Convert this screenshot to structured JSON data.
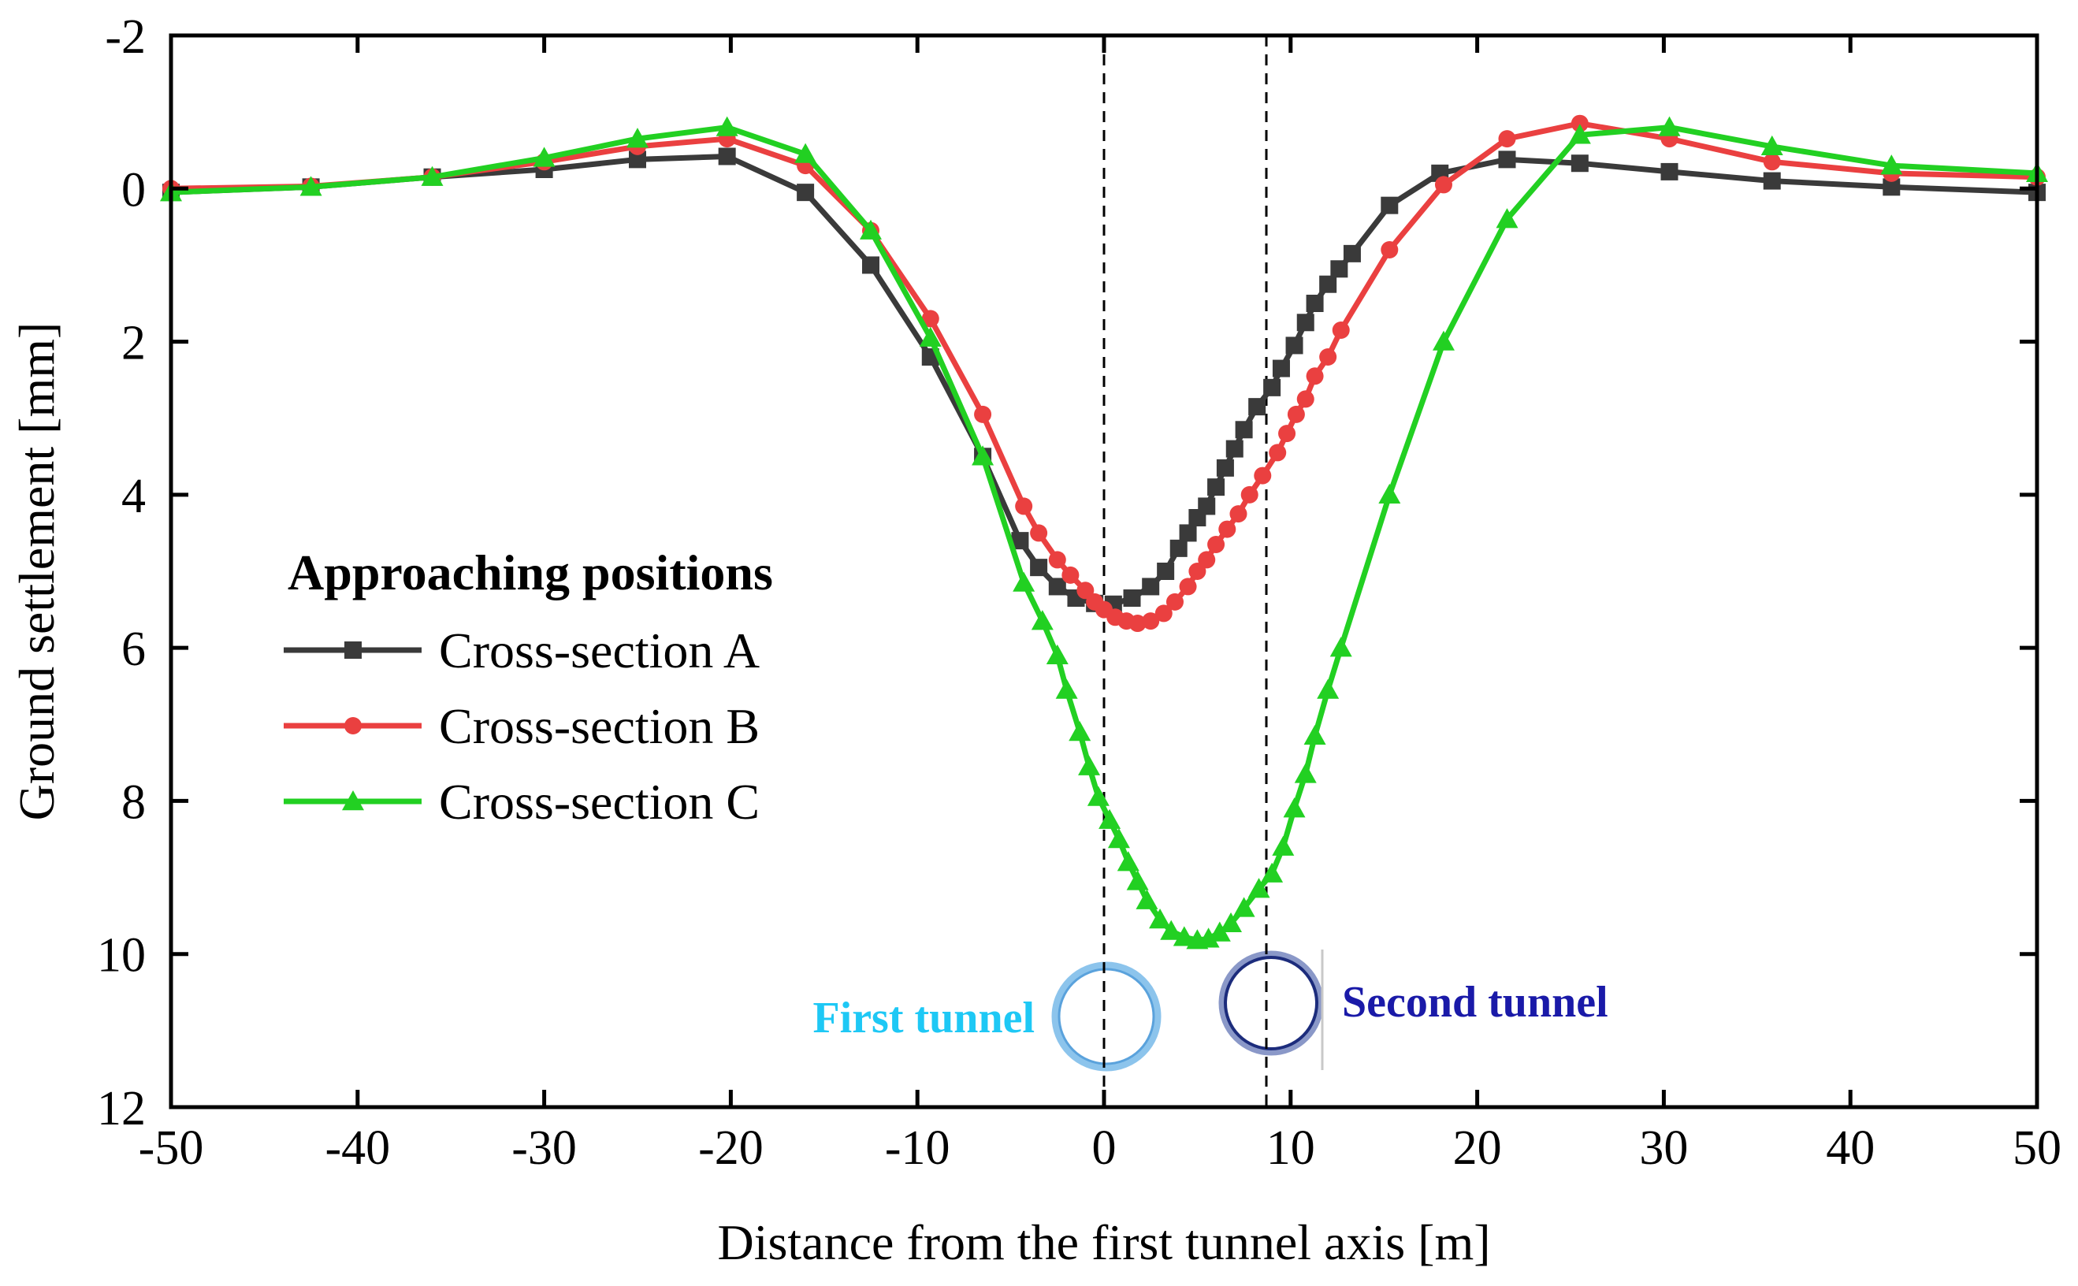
{
  "chart_data": {
    "type": "line",
    "title": "",
    "xlabel": "Distance from the first tunnel axis [m]",
    "ylabel": "Ground settlement [mm]",
    "xlim": [
      -50,
      50
    ],
    "ylim": [
      -2,
      12
    ],
    "y_inverted": true,
    "grid": false,
    "x_ticks": [
      -50,
      -40,
      -30,
      -20,
      -10,
      0,
      10,
      20,
      30,
      40,
      50
    ],
    "y_ticks": [
      -2,
      0,
      2,
      4,
      6,
      8,
      10,
      12
    ],
    "legend": {
      "title": "Approaching positions",
      "placement": "center-left"
    },
    "annotations": {
      "first_tunnel": {
        "label": "First tunnel",
        "x": 0,
        "color": "#1ec8f5"
      },
      "second_tunnel": {
        "label": "Second tunnel",
        "x": 8.7,
        "color": "#1a1aa8"
      }
    },
    "vertical_reference_lines": [
      0,
      8.7
    ],
    "series": [
      {
        "name": "Cross-section A",
        "color": "#3a3a3a",
        "marker": "square",
        "points": [
          [
            -50,
            0.05
          ],
          [
            -42.5,
            -0.02
          ],
          [
            -36,
            -0.15
          ],
          [
            -30,
            -0.25
          ],
          [
            -25,
            -0.38
          ],
          [
            -20.2,
            -0.42
          ],
          [
            -16,
            0.05
          ],
          [
            -12.5,
            1.0
          ],
          [
            -9.3,
            2.2
          ],
          [
            -6.5,
            3.5
          ],
          [
            -4.5,
            4.6
          ],
          [
            -3.5,
            4.95
          ],
          [
            -2.5,
            5.2
          ],
          [
            -1.5,
            5.35
          ],
          [
            -0.5,
            5.42
          ],
          [
            0.5,
            5.43
          ],
          [
            1.5,
            5.35
          ],
          [
            2.5,
            5.2
          ],
          [
            3.3,
            5.0
          ],
          [
            4.0,
            4.7
          ],
          [
            4.5,
            4.5
          ],
          [
            5.0,
            4.3
          ],
          [
            5.5,
            4.15
          ],
          [
            6.0,
            3.9
          ],
          [
            6.5,
            3.65
          ],
          [
            7.0,
            3.4
          ],
          [
            7.5,
            3.15
          ],
          [
            8.2,
            2.85
          ],
          [
            9.0,
            2.6
          ],
          [
            9.5,
            2.35
          ],
          [
            10.2,
            2.05
          ],
          [
            10.8,
            1.75
          ],
          [
            11.3,
            1.5
          ],
          [
            12.0,
            1.25
          ],
          [
            12.6,
            1.05
          ],
          [
            13.3,
            0.85
          ],
          [
            15.3,
            0.22
          ],
          [
            18.0,
            -0.2
          ],
          [
            21.6,
            -0.38
          ],
          [
            25.5,
            -0.33
          ],
          [
            30.3,
            -0.22
          ],
          [
            35.8,
            -0.1
          ],
          [
            42.2,
            -0.02
          ],
          [
            50,
            0.05
          ]
        ]
      },
      {
        "name": "Cross-section B",
        "color": "#ea4040",
        "marker": "circle",
        "points": [
          [
            -50,
            0.0
          ],
          [
            -42.5,
            -0.03
          ],
          [
            -36,
            -0.15
          ],
          [
            -30,
            -0.35
          ],
          [
            -25,
            -0.55
          ],
          [
            -20.2,
            -0.65
          ],
          [
            -16,
            -0.3
          ],
          [
            -12.5,
            0.55
          ],
          [
            -9.3,
            1.7
          ],
          [
            -6.5,
            2.95
          ],
          [
            -4.3,
            4.15
          ],
          [
            -3.5,
            4.5
          ],
          [
            -2.5,
            4.85
          ],
          [
            -1.8,
            5.05
          ],
          [
            -1.0,
            5.25
          ],
          [
            -0.5,
            5.4
          ],
          [
            0.0,
            5.5
          ],
          [
            0.6,
            5.6
          ],
          [
            1.2,
            5.65
          ],
          [
            1.8,
            5.68
          ],
          [
            2.5,
            5.65
          ],
          [
            3.2,
            5.55
          ],
          [
            3.8,
            5.4
          ],
          [
            4.5,
            5.2
          ],
          [
            5.0,
            5.0
          ],
          [
            5.5,
            4.85
          ],
          [
            6.0,
            4.65
          ],
          [
            6.6,
            4.45
          ],
          [
            7.2,
            4.25
          ],
          [
            7.8,
            4.0
          ],
          [
            8.5,
            3.75
          ],
          [
            9.3,
            3.45
          ],
          [
            9.8,
            3.2
          ],
          [
            10.3,
            2.95
          ],
          [
            10.8,
            2.75
          ],
          [
            11.3,
            2.45
          ],
          [
            12.0,
            2.2
          ],
          [
            12.7,
            1.85
          ],
          [
            15.3,
            0.8
          ],
          [
            18.2,
            -0.05
          ],
          [
            21.6,
            -0.65
          ],
          [
            25.5,
            -0.85
          ],
          [
            30.3,
            -0.65
          ],
          [
            35.8,
            -0.35
          ],
          [
            42.2,
            -0.2
          ],
          [
            50,
            -0.15
          ]
        ]
      },
      {
        "name": "Cross-section C",
        "color": "#22d022",
        "marker": "triangle",
        "points": [
          [
            -50,
            0.05
          ],
          [
            -42.5,
            -0.02
          ],
          [
            -36,
            -0.15
          ],
          [
            -30,
            -0.4
          ],
          [
            -25,
            -0.65
          ],
          [
            -20.2,
            -0.8
          ],
          [
            -16,
            -0.45
          ],
          [
            -12.5,
            0.55
          ],
          [
            -9.3,
            1.95
          ],
          [
            -6.5,
            3.5
          ],
          [
            -4.3,
            5.15
          ],
          [
            -3.3,
            5.65
          ],
          [
            -2.5,
            6.1
          ],
          [
            -2.0,
            6.55
          ],
          [
            -1.3,
            7.1
          ],
          [
            -0.8,
            7.55
          ],
          [
            -0.3,
            7.95
          ],
          [
            0.3,
            8.25
          ],
          [
            0.8,
            8.5
          ],
          [
            1.3,
            8.8
          ],
          [
            1.8,
            9.05
          ],
          [
            2.3,
            9.3
          ],
          [
            3.0,
            9.55
          ],
          [
            3.6,
            9.7
          ],
          [
            4.3,
            9.78
          ],
          [
            5.0,
            9.82
          ],
          [
            5.6,
            9.8
          ],
          [
            6.2,
            9.72
          ],
          [
            6.8,
            9.6
          ],
          [
            7.5,
            9.4
          ],
          [
            8.3,
            9.15
          ],
          [
            9.0,
            8.95
          ],
          [
            9.6,
            8.6
          ],
          [
            10.2,
            8.1
          ],
          [
            10.8,
            7.65
          ],
          [
            11.3,
            7.15
          ],
          [
            12.0,
            6.55
          ],
          [
            12.7,
            6.0
          ],
          [
            15.3,
            4.0
          ],
          [
            18.2,
            2.0
          ],
          [
            21.6,
            0.4
          ],
          [
            25.5,
            -0.7
          ],
          [
            30.3,
            -0.8
          ],
          [
            35.8,
            -0.55
          ],
          [
            42.2,
            -0.3
          ],
          [
            50,
            -0.2
          ]
        ]
      }
    ]
  }
}
